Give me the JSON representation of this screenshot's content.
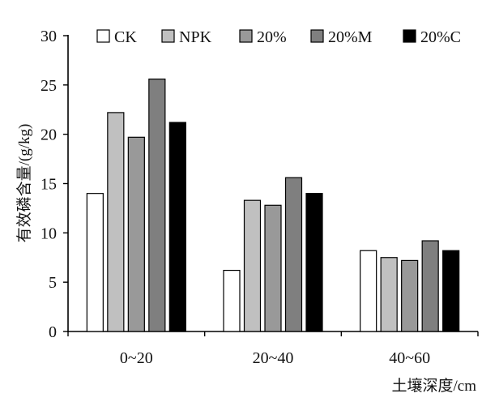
{
  "chart_data": {
    "type": "bar",
    "categories": [
      "0~20",
      "20~40",
      "40~60"
    ],
    "series": [
      {
        "name": "CK",
        "values": [
          14.0,
          6.2,
          8.2
        ],
        "color": "#ffffff"
      },
      {
        "name": "NPK",
        "values": [
          22.2,
          13.3,
          7.5
        ],
        "color": "#c0c0c0"
      },
      {
        "name": "20%",
        "values": [
          19.7,
          12.8,
          7.2
        ],
        "color": "#999999"
      },
      {
        "name": "20%M",
        "values": [
          25.6,
          15.6,
          9.2
        ],
        "color": "#7f7f7f"
      },
      {
        "name": "20%C",
        "values": [
          21.2,
          14.0,
          8.2
        ],
        "color": "#000000"
      }
    ],
    "title": "",
    "xlabel": "土壤深度/cm",
    "ylabel": "有效磷含量/(g/kg)",
    "ylim": [
      0,
      30
    ],
    "yticks": [
      "0",
      "5",
      "10",
      "15",
      "20",
      "25",
      "30"
    ],
    "grid": false,
    "legend_position": "top"
  }
}
